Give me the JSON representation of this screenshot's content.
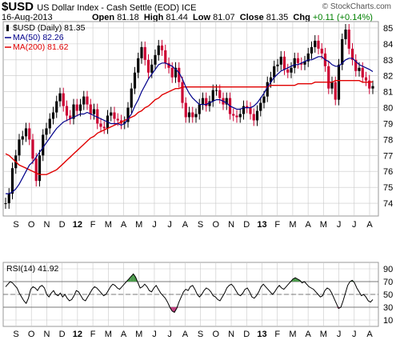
{
  "header": {
    "symbol": "$USD",
    "description": "US Dollar Index - Cash Settle (EOD) ICE",
    "watermark": "© StockCharts.com",
    "date": "16-Aug-2013",
    "open_label": "Open",
    "open": "81.18",
    "high_label": "High",
    "high": "81.44",
    "low_label": "Low",
    "low": "81.07",
    "close_label": "Close",
    "close": "81.35",
    "chg_label": "Chg",
    "chg": "+0.11 (+0.14%)"
  },
  "colors": {
    "price_up": "#000000",
    "price_down": "#cc0033",
    "ma50": "#00008b",
    "ma200": "#e00000",
    "rsi_line": "#000000",
    "rsi_fill_high": "#4a9a4a",
    "rsi_fill_low": "#c04080",
    "grid": "#c8c8c8"
  },
  "chart_data": [
    {
      "type": "line",
      "legend": [
        {
          "name": "$USD (Daily) 81.35",
          "color": "#000000"
        },
        {
          "name": "MA(50) 82.26",
          "color": "#00008b"
        },
        {
          "name": "MA(200) 81.62",
          "color": "#e00000"
        }
      ],
      "x_ticks": [
        "S",
        "O",
        "N",
        "D",
        "12",
        "F",
        "M",
        "A",
        "M",
        "J",
        "J",
        "A",
        "S",
        "O",
        "N",
        "D",
        "13",
        "F",
        "M",
        "A",
        "M",
        "J",
        "J",
        "A"
      ],
      "y_ticks": [
        74,
        75,
        76,
        77,
        78,
        79,
        80,
        81,
        82,
        83,
        84,
        85
      ],
      "ylim": [
        73.2,
        85.4
      ],
      "grid": true,
      "series": [
        {
          "name": "$USD (Daily) 81.35",
          "values": [
            74.0,
            74.6,
            76.2,
            77.0,
            78.0,
            78.2,
            78.7,
            78.0,
            76.8,
            75.4,
            77.0,
            78.3,
            78.7,
            79.3,
            79.7,
            80.4,
            80.9,
            80.1,
            79.5,
            79.3,
            80.2,
            79.8,
            80.2,
            80.7,
            80.2,
            79.6,
            79.9,
            79.0,
            78.8,
            78.7,
            79.5,
            79.7,
            79.3,
            79.2,
            79.0,
            79.1,
            80.0,
            81.2,
            82.2,
            83.1,
            83.8,
            83.0,
            82.2,
            82.7,
            83.3,
            83.9,
            83.6,
            82.8,
            82.5,
            81.9,
            82.5,
            81.6,
            80.3,
            79.4,
            79.7,
            79.4,
            79.6,
            80.2,
            80.6,
            80.1,
            80.4,
            81.1,
            81.1,
            80.6,
            80.2,
            80.6,
            79.6,
            79.5,
            79.4,
            79.6,
            80.1,
            80.0,
            79.6,
            79.2,
            79.8,
            80.3,
            80.7,
            81.6,
            81.9,
            82.6,
            82.7,
            83.2,
            82.4,
            82.2,
            82.5,
            83.1,
            82.8,
            82.7,
            82.9,
            83.4,
            83.8,
            84.2,
            83.7,
            83.4,
            82.6,
            81.2,
            81.6,
            80.5,
            82.7,
            84.3,
            84.9,
            83.7,
            83.0,
            82.3,
            82.5,
            81.9,
            81.7,
            81.2,
            81.35
          ]
        },
        {
          "name": "MA(50) 82.26",
          "values": [
            74.6,
            74.6,
            74.7,
            74.9,
            75.2,
            75.6,
            76.0,
            76.4,
            76.6,
            76.9,
            77.2,
            77.5,
            77.8,
            78.1,
            78.4,
            78.7,
            78.9,
            79.1,
            79.2,
            79.3,
            79.4,
            79.5,
            79.6,
            79.6,
            79.7,
            79.6,
            79.5,
            79.4,
            79.3,
            79.2,
            79.1,
            79.0,
            79.0,
            79.0,
            78.9,
            79.0,
            79.3,
            79.6,
            80.1,
            80.5,
            81.0,
            81.4,
            81.8,
            82.1,
            82.4,
            82.7,
            82.8,
            82.8,
            82.7,
            82.6,
            82.4,
            82.2,
            81.8,
            81.3,
            80.9,
            80.6,
            80.4,
            80.2,
            80.2,
            80.2,
            80.3,
            80.4,
            80.5,
            80.5,
            80.4,
            80.3,
            80.1,
            80.0,
            79.9,
            79.9,
            80.0,
            80.0,
            80.0,
            80.1,
            80.3,
            80.6,
            80.9,
            81.3,
            81.6,
            81.9,
            82.1,
            82.3,
            82.4,
            82.5,
            82.6,
            82.7,
            82.7,
            82.8,
            82.9,
            83.0,
            83.0,
            83.1,
            83.2,
            83.2,
            83.0,
            82.9,
            82.7,
            82.6,
            82.6,
            82.8,
            83.0,
            83.1,
            83.1,
            82.9,
            82.7,
            82.6,
            82.5,
            82.4,
            82.26
          ]
        },
        {
          "name": "MA(200) 81.62",
          "values": [
            77.1,
            77.0,
            76.8,
            76.6,
            76.4,
            76.3,
            76.2,
            76.1,
            76.0,
            75.9,
            75.8,
            75.8,
            75.8,
            75.9,
            76.0,
            76.1,
            76.3,
            76.5,
            76.7,
            76.9,
            77.1,
            77.3,
            77.5,
            77.7,
            77.9,
            78.1,
            78.2,
            78.4,
            78.5,
            78.6,
            78.7,
            78.8,
            78.9,
            79.0,
            79.1,
            79.2,
            79.3,
            79.4,
            79.5,
            79.7,
            79.8,
            80.0,
            80.1,
            80.3,
            80.5,
            80.6,
            80.8,
            80.9,
            81.0,
            81.1,
            81.2,
            81.2,
            81.3,
            81.3,
            81.3,
            81.3,
            81.3,
            81.3,
            81.3,
            81.3,
            81.3,
            81.3,
            81.3,
            81.3,
            81.3,
            81.3,
            81.3,
            81.3,
            81.3,
            81.3,
            81.3,
            81.3,
            81.3,
            81.3,
            81.3,
            81.3,
            81.3,
            81.3,
            81.4,
            81.4,
            81.4,
            81.4,
            81.4,
            81.4,
            81.4,
            81.4,
            81.5,
            81.5,
            81.5,
            81.5,
            81.5,
            81.6,
            81.6,
            81.6,
            81.6,
            81.6,
            81.6,
            81.7,
            81.7,
            81.7,
            81.7,
            81.7,
            81.7,
            81.7,
            81.7,
            81.6,
            81.6,
            81.6,
            81.62
          ]
        }
      ]
    },
    {
      "type": "line",
      "legend": [
        {
          "name": "RSI(14) 41.92",
          "color": "#000000"
        }
      ],
      "y_ticks": [
        10,
        30,
        50,
        70,
        90
      ],
      "ylim": [
        0,
        100
      ],
      "reference_lines": [
        30,
        50,
        70
      ],
      "series": [
        {
          "name": "RSI(14) 41.92",
          "values": [
            62,
            66,
            70,
            68,
            64,
            60,
            52,
            46,
            40,
            36,
            44,
            58,
            62,
            60,
            56,
            62,
            64,
            60,
            50,
            46,
            52,
            56,
            50,
            48,
            52,
            46,
            50,
            44,
            40,
            42,
            48,
            56,
            54,
            48,
            42,
            40,
            46,
            52,
            58,
            62,
            60,
            56,
            52,
            48,
            50,
            56,
            62,
            66,
            64,
            60,
            58,
            62,
            66,
            70,
            74,
            78,
            82,
            77,
            68,
            60,
            62,
            66,
            62,
            56,
            54,
            60,
            64,
            58,
            52,
            48,
            44,
            38,
            30,
            24,
            22,
            28,
            38,
            46,
            54,
            58,
            56,
            62,
            64,
            58,
            50,
            46,
            50,
            56,
            60,
            58,
            54,
            48,
            46,
            42,
            40,
            46,
            52,
            60,
            64,
            66,
            62,
            56,
            50,
            48,
            52,
            58,
            60,
            54,
            46,
            44,
            48,
            54,
            62,
            66,
            62,
            58,
            54,
            50,
            54,
            60,
            64,
            60,
            58,
            62,
            66,
            70,
            74,
            76,
            74,
            72,
            68,
            70,
            66,
            62,
            60,
            58,
            54,
            50,
            46,
            48,
            56,
            60,
            58,
            52,
            44,
            36,
            28,
            30,
            40,
            52,
            64,
            70,
            72,
            68,
            60,
            54,
            48,
            50,
            46,
            40,
            38,
            42
          ]
        }
      ]
    }
  ]
}
